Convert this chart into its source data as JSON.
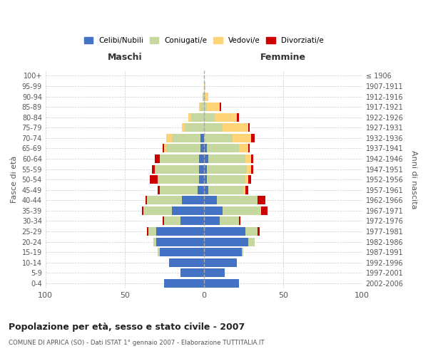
{
  "age_groups": [
    "0-4",
    "5-9",
    "10-14",
    "15-19",
    "20-24",
    "25-29",
    "30-34",
    "35-39",
    "40-44",
    "45-49",
    "50-54",
    "55-59",
    "60-64",
    "65-69",
    "70-74",
    "75-79",
    "80-84",
    "85-89",
    "90-94",
    "95-99",
    "100+"
  ],
  "birth_years": [
    "2002-2006",
    "1997-2001",
    "1992-1996",
    "1987-1991",
    "1982-1986",
    "1977-1981",
    "1972-1976",
    "1967-1971",
    "1962-1966",
    "1957-1961",
    "1952-1956",
    "1947-1951",
    "1942-1946",
    "1937-1941",
    "1932-1936",
    "1927-1931",
    "1922-1926",
    "1917-1921",
    "1912-1916",
    "1907-1911",
    "≤ 1906"
  ],
  "maschi": {
    "celibi": [
      25,
      15,
      22,
      28,
      30,
      30,
      15,
      20,
      14,
      4,
      3,
      3,
      3,
      2,
      2,
      0,
      0,
      0,
      0,
      0,
      0
    ],
    "coniugati": [
      0,
      0,
      0,
      1,
      2,
      5,
      10,
      18,
      22,
      24,
      26,
      28,
      25,
      22,
      18,
      12,
      8,
      2,
      1,
      0,
      0
    ],
    "vedovi": [
      0,
      0,
      0,
      0,
      0,
      0,
      0,
      0,
      0,
      0,
      0,
      0,
      0,
      1,
      4,
      2,
      2,
      1,
      0,
      0,
      0
    ],
    "divorziati": [
      0,
      0,
      0,
      0,
      0,
      1,
      1,
      1,
      1,
      1,
      5,
      2,
      3,
      1,
      0,
      0,
      0,
      0,
      0,
      0,
      0
    ]
  },
  "femmine": {
    "nubili": [
      22,
      13,
      21,
      24,
      28,
      26,
      10,
      12,
      8,
      3,
      2,
      2,
      3,
      2,
      0,
      0,
      0,
      0,
      0,
      0,
      0
    ],
    "coniugate": [
      0,
      0,
      0,
      1,
      4,
      8,
      12,
      24,
      26,
      22,
      24,
      25,
      23,
      20,
      18,
      12,
      7,
      2,
      1,
      0,
      0
    ],
    "vedove": [
      0,
      0,
      0,
      0,
      0,
      0,
      0,
      0,
      0,
      1,
      2,
      3,
      4,
      6,
      12,
      16,
      14,
      8,
      2,
      1,
      0
    ],
    "divorziate": [
      0,
      0,
      0,
      0,
      0,
      1,
      1,
      4,
      5,
      2,
      2,
      1,
      1,
      1,
      2,
      1,
      1,
      1,
      0,
      0,
      0
    ]
  },
  "colors": {
    "celibi": "#4472C4",
    "coniugati": "#C6D8A0",
    "vedovi": "#FFD479",
    "divorziati": "#CC0000"
  },
  "title": "Popolazione per età, sesso e stato civile - 2007",
  "subtitle": "COMUNE DI APRICA (SO) - Dati ISTAT 1° gennaio 2007 - Elaborazione TUTTITALIA.IT",
  "ylabel_left": "Fasce di età",
  "ylabel_right": "Anni di nascita",
  "xlim": 100,
  "background_color": "#ffffff",
  "grid_color": "#cccccc"
}
